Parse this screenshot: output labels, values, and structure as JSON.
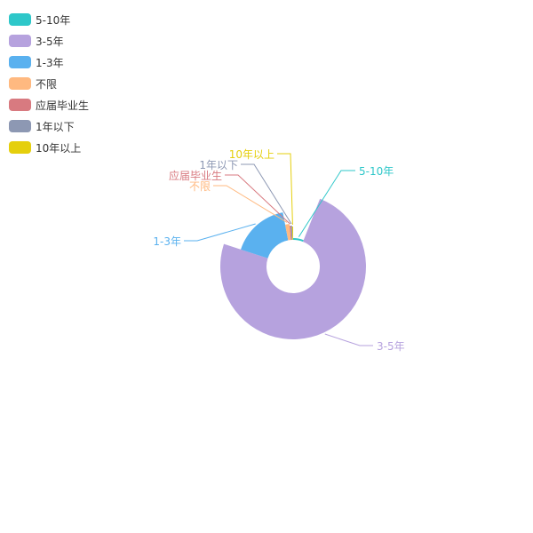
{
  "chart_data": {
    "type": "pie",
    "variant": "rose",
    "legend_position": "top-left",
    "categories": [
      "5-10年",
      "3-5年",
      "1-3年",
      "不限",
      "应届毕业生",
      "1年以下",
      "10年以上"
    ],
    "values": [
      6,
      74,
      17,
      1.6,
      0.5,
      0.5,
      0.4
    ],
    "radius_values": [
      32,
      82,
      62,
      18,
      16,
      16,
      15
    ],
    "colors": [
      "#2ec7c9",
      "#b6a2de",
      "#5ab1ef",
      "#ffb980",
      "#d87a80",
      "#8d98b3",
      "#e5cf0d"
    ]
  }
}
